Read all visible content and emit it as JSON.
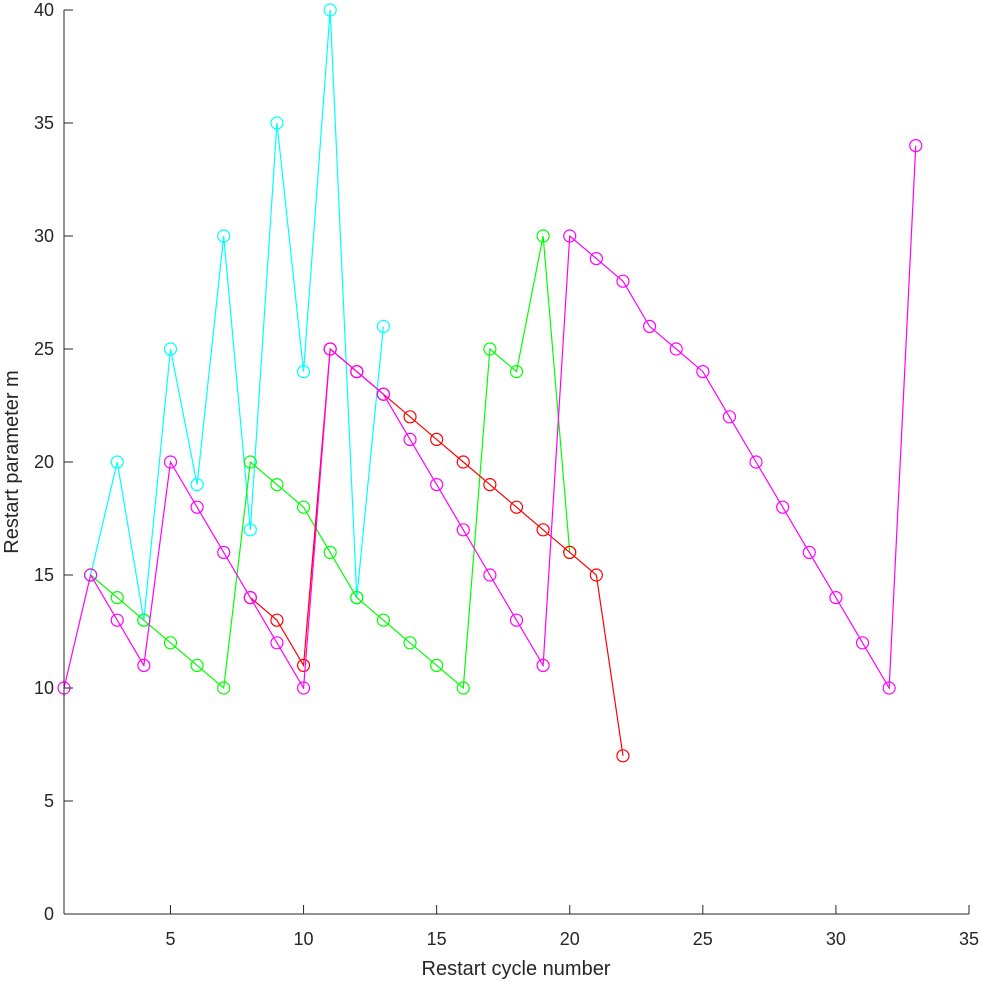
{
  "chart_data": {
    "type": "line",
    "xlabel": "Restart cycle number",
    "ylabel": "Restart parameter m",
    "xlim": [
      1,
      35
    ],
    "ylim": [
      0,
      40
    ],
    "xticks": [
      5,
      10,
      15,
      20,
      25,
      30,
      35
    ],
    "yticks": [
      0,
      5,
      10,
      15,
      20,
      25,
      30,
      35,
      40
    ],
    "grid": false,
    "marker": "circle",
    "series": [
      {
        "color": "#00ffff",
        "x": [
          2,
          3,
          4,
          5,
          6,
          7,
          8,
          9,
          10,
          11,
          12,
          13
        ],
        "y": [
          15,
          20,
          13,
          25,
          19,
          30,
          17,
          35,
          24,
          40,
          14,
          26
        ]
      },
      {
        "color": "#00ff00",
        "x": [
          2,
          3,
          4,
          5,
          6,
          7,
          8,
          9,
          10,
          11,
          12,
          13,
          14,
          15,
          16,
          17,
          18,
          19,
          20
        ],
        "y": [
          15,
          14,
          13,
          12,
          11,
          10,
          20,
          19,
          18,
          16,
          14,
          13,
          12,
          11,
          10,
          25,
          24,
          30,
          16
        ]
      },
      {
        "color": "#ff0000",
        "x": [
          8,
          9,
          10,
          11,
          12,
          13,
          14,
          15,
          16,
          17,
          18,
          19,
          20,
          21,
          22
        ],
        "y": [
          14,
          13,
          11,
          25,
          24,
          23,
          22,
          21,
          20,
          19,
          18,
          17,
          16,
          15,
          7
        ]
      },
      {
        "color": "#ff00ff",
        "x": [
          1,
          2,
          3,
          4,
          5,
          6,
          7,
          8,
          9,
          10,
          11,
          12,
          13,
          14,
          15,
          16,
          17,
          18,
          19,
          20,
          21,
          22,
          23,
          24,
          25,
          26,
          27,
          28,
          29,
          30,
          31,
          32,
          33
        ],
        "y": [
          10,
          15,
          13,
          11,
          20,
          18,
          16,
          14,
          12,
          10,
          25,
          24,
          23,
          21,
          19,
          17,
          15,
          13,
          11,
          30,
          29,
          28,
          26,
          25,
          24,
          22,
          20,
          18,
          16,
          14,
          12,
          10,
          34
        ]
      }
    ]
  }
}
